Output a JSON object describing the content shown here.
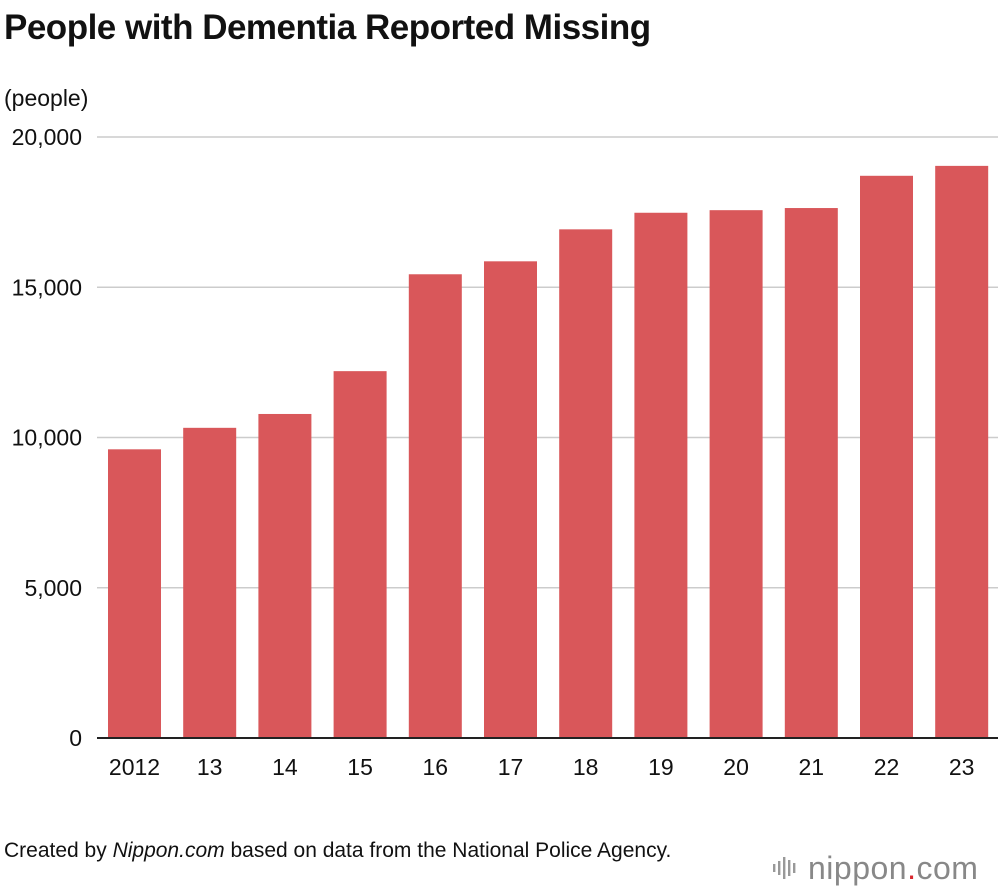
{
  "title": "People with Dementia Reported Missing",
  "chart_data": {
    "type": "bar",
    "title": "People with Dementia Reported Missing",
    "ylabel": "(people)",
    "xlabel": "",
    "categories": [
      "2012",
      "13",
      "14",
      "15",
      "16",
      "17",
      "18",
      "19",
      "20",
      "21",
      "22",
      "23"
    ],
    "values": [
      9607,
      10322,
      10783,
      12208,
      15432,
      15863,
      16927,
      17479,
      17565,
      17636,
      18709,
      19039
    ],
    "ylim": [
      0,
      20000
    ],
    "yticks": [
      0,
      5000,
      10000,
      15000,
      20000
    ],
    "ytick_labels": [
      "0",
      "5,000",
      "10,000",
      "15,000",
      "20,000"
    ],
    "grid": true,
    "legend": "none",
    "bar_color": "#d9575a",
    "grid_color": "#cccccc"
  },
  "footer": {
    "source_prefix": "Created by ",
    "source_italic": "Nippon.com",
    "source_suffix": " based on data from the National Police Agency."
  },
  "brand": {
    "name": "nippon",
    "dot": ".",
    "suffix": "com",
    "icon": "sound-bars-icon",
    "dot_color": "#d9272e"
  }
}
